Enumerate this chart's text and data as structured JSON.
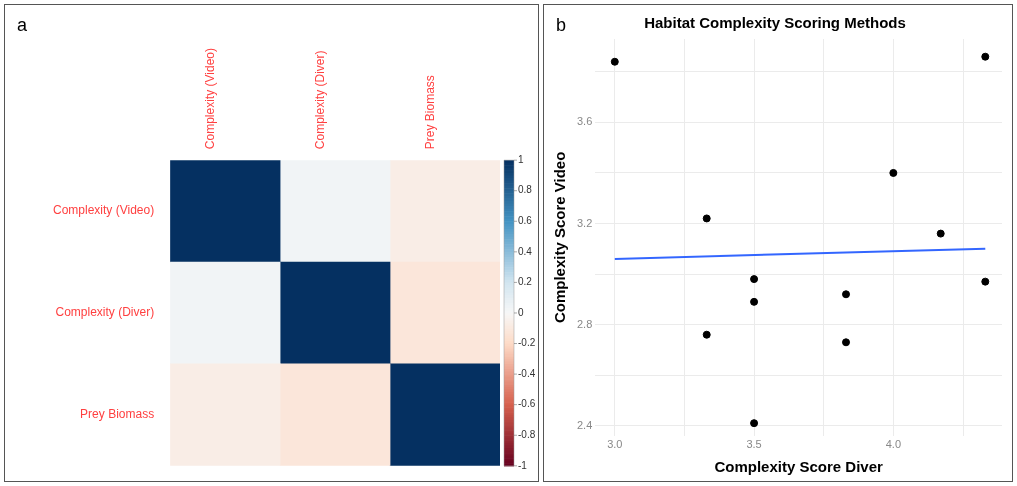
{
  "chart_data": [
    {
      "type": "heatmap",
      "annotations": [
        "a"
      ],
      "categories": [
        "Complexity (Video)",
        "Complexity (Diver)",
        "Prey Biomass"
      ],
      "y_categories": [
        "Complexity (Video)",
        "Complexity (Diver)",
        "Prey Biomass"
      ],
      "cells": [
        [
          1,
          0.03,
          -0.07
        ],
        [
          0.03,
          1,
          -0.12
        ],
        [
          -0.07,
          -0.12,
          1
        ]
      ],
      "clim": [
        -1,
        1
      ],
      "cticks": [
        1,
        0.8,
        0.6,
        0.4,
        0.2,
        0,
        -0.2,
        -0.4,
        -0.6,
        -0.8,
        -1
      ]
    },
    {
      "type": "scatter",
      "annotations": [
        "b"
      ],
      "title": "Habitat Complexity Scoring Methods",
      "xlabel": "Complexity Score Diver",
      "ylabel": "Complexity Score Video",
      "series": [
        {
          "type": "scatter",
          "marker": "circle",
          "color": "#000000",
          "x": [
            3.0,
            4.33,
            3.33,
            4.0,
            4.17,
            3.5,
            3.5,
            3.83,
            3.33,
            3.83,
            3.5,
            4.33
          ],
          "values": [
            3.84,
            3.86,
            3.22,
            3.4,
            3.16,
            2.98,
            2.89,
            2.92,
            2.76,
            2.73,
            2.41,
            2.97
          ]
        },
        {
          "type": "line",
          "marker": "none",
          "color": "#3366ff",
          "x": [
            3.0,
            4.33
          ],
          "values": [
            3.06,
            3.1
          ]
        }
      ],
      "xlim": [
        2.93,
        4.39
      ],
      "ylim": [
        2.36,
        3.93
      ],
      "xticks": [
        {
          "value": 3,
          "label": "3.0"
        },
        {
          "value": 3.25,
          "label": null
        },
        3.5,
        {
          "value": 3.75,
          "label": null
        },
        {
          "value": 4,
          "label": "4.0"
        },
        {
          "value": 4.25,
          "label": null
        }
      ],
      "yticks": [
        2.4,
        {
          "value": 2.6,
          "label": null
        },
        2.8,
        {
          "value": 3.0,
          "label": null
        },
        3.2,
        {
          "value": 3.4,
          "label": null
        },
        3.6,
        {
          "value": 3.8,
          "label": null
        }
      ],
      "grid": true
    }
  ]
}
